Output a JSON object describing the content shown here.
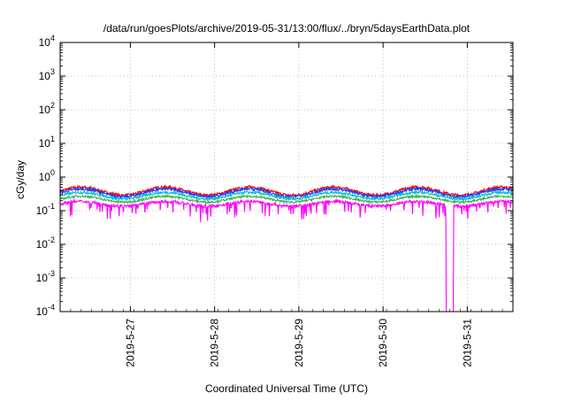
{
  "chart_data": {
    "type": "line",
    "title": "/data/run/goesPlots/archive/2019-05-31/13:00/flux/../bryn/5daysEarthData.plot",
    "xlabel": "Coordinated Universal Time (UTC)",
    "ylabel": "cGy/day",
    "yscale": "log",
    "ylim": [
      0.0001,
      10000
    ],
    "xlim": [
      "2019-05-26 04:00",
      "2019-05-31 13:00"
    ],
    "x_ticks": [
      "2019-5-27",
      "2019-5-28",
      "2019-5-29",
      "2019-5-30",
      "2019-5-31"
    ],
    "y_ticks": [
      {
        "base": "10",
        "exp": "-4",
        "value": 0.0001
      },
      {
        "base": "10",
        "exp": "-3",
        "value": 0.001
      },
      {
        "base": "10",
        "exp": "-2",
        "value": 0.01
      },
      {
        "base": "10",
        "exp": "-1",
        "value": 0.1
      },
      {
        "base": "10",
        "exp": "0",
        "value": 1
      },
      {
        "base": "10",
        "exp": "1",
        "value": 10
      },
      {
        "base": "10",
        "exp": "2",
        "value": 100
      },
      {
        "base": "10",
        "exp": "3",
        "value": 1000
      },
      {
        "base": "10",
        "exp": "4",
        "value": 10000
      }
    ],
    "grid": true,
    "dropout": {
      "start": "2019-05-30 18:00",
      "end": "2019-05-30 20:00",
      "value": 0.0001
    },
    "series": [
      {
        "color": "#ff0000",
        "base": 0.38,
        "amp": 1.32,
        "noise": 0.1,
        "dips": false
      },
      {
        "color": "#1f3fff",
        "base": 0.34,
        "amp": 1.3,
        "noise": 0.1,
        "dips": false
      },
      {
        "color": "#00bcd4",
        "base": 0.28,
        "amp": 1.25,
        "noise": 0.08,
        "dips": false
      },
      {
        "color": "#3cb44b",
        "base": 0.22,
        "amp": 1.22,
        "noise": 0.07,
        "dips": false
      },
      {
        "color": "#ff00ff",
        "base": 0.16,
        "amp": 1.18,
        "noise": 0.1,
        "dips": true
      }
    ]
  }
}
